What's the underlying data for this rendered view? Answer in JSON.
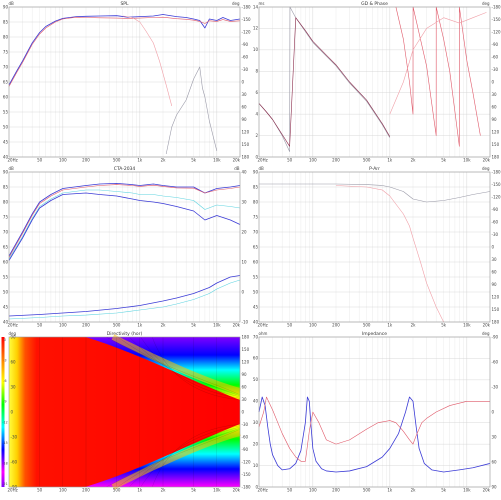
{
  "colors": {
    "blue": "#3b3bd6",
    "red": "#e05a6a",
    "cyan": "#5fd4e0",
    "grey": "#9a9aa8",
    "light_red": "#f0a0a8",
    "dark_red": "#8a2a4a"
  },
  "x_axis": {
    "ticks": [
      20,
      50,
      100,
      200,
      500,
      1000,
      2000,
      5000,
      10000,
      20000
    ],
    "tick_labels": [
      "20Hz",
      "50",
      "100",
      "200",
      "500",
      "1k",
      "2k",
      "5k",
      "10k",
      "20k"
    ]
  },
  "chart_data": [
    {
      "id": "spl",
      "type": "line",
      "title": "SPL",
      "left_unit": "dB",
      "right_unit": "deg",
      "ylim": [
        40,
        90
      ],
      "yticks": [
        40,
        45,
        50,
        55,
        60,
        65,
        70,
        75,
        80,
        85,
        90
      ],
      "right_ticks": [
        "-180",
        "-150",
        "-120",
        "-90",
        "-60",
        "-30",
        "0",
        "30",
        "60",
        "90",
        "120",
        "150",
        "180"
      ],
      "series": [
        {
          "color": "blue",
          "x": [
            20,
            25,
            30,
            40,
            50,
            60,
            80,
            100,
            150,
            200,
            300,
            500,
            700,
            1000,
            1500,
            2000,
            3000,
            4000,
            5000,
            6000,
            7000,
            8000,
            10000,
            12000,
            15000,
            20000
          ],
          "y": [
            64,
            68.5,
            72,
            78,
            81.5,
            83.5,
            85.3,
            86.2,
            86.8,
            86.9,
            87,
            87.1,
            86.6,
            86.8,
            87,
            87.5,
            86.8,
            86.5,
            86,
            85.5,
            83,
            86,
            85.5,
            86.5,
            85.5,
            86
          ]
        },
        {
          "color": "red",
          "x": [
            20,
            25,
            30,
            40,
            50,
            60,
            80,
            100,
            150,
            200,
            300,
            500,
            700,
            1000,
            1500,
            2000,
            3000,
            4000,
            5000,
            6000,
            7000,
            8000,
            10000,
            12000,
            15000,
            20000
          ],
          "y": [
            63.5,
            68,
            71.5,
            77.5,
            81,
            83,
            85,
            86,
            86.6,
            86.5,
            86.4,
            86.3,
            86.2,
            86.3,
            86.5,
            86.6,
            86.1,
            85.9,
            85.6,
            85.2,
            84.5,
            85.4,
            85.2,
            85.8,
            85.2,
            85.4
          ]
        },
        {
          "color": "light_red",
          "x": [
            600,
            800,
            1000,
            1200,
            1500,
            1800,
            2200,
            2600
          ],
          "y": [
            87,
            86.5,
            85,
            82,
            78,
            72,
            64,
            57
          ]
        },
        {
          "color": "grey",
          "x": [
            2200,
            2600,
            3000,
            4000,
            5000,
            6000,
            6500,
            7000,
            8000,
            10000
          ],
          "y": [
            41,
            50,
            54,
            59,
            66,
            70,
            63,
            60,
            52,
            42
          ]
        }
      ]
    },
    {
      "id": "gd_phase",
      "type": "line",
      "title": "GD & Phase",
      "left_unit": "ms",
      "right_unit": "deg",
      "ylim": [
        0,
        14
      ],
      "yticks": [
        0,
        2,
        4,
        6,
        8,
        10,
        12,
        14
      ],
      "right_ticks": [
        "-180",
        "-150",
        "-120",
        "-90",
        "-60",
        "-30",
        "0",
        "30",
        "60",
        "90",
        "120",
        "150",
        "180"
      ],
      "series": [
        {
          "color": "grey",
          "x": [
            20,
            25,
            30,
            40,
            50,
            50.5,
            60,
            80,
            100,
            150,
            200,
            300,
            500,
            800,
            1000
          ],
          "y": [
            5,
            4.2,
            3.5,
            2,
            0.5,
            14,
            13,
            11.7,
            10.7,
            9.4,
            8.5,
            6.9,
            5.2,
            3,
            1.8
          ]
        },
        {
          "color": "dark_red",
          "x": [
            20,
            25,
            30,
            40,
            50,
            60,
            80,
            100,
            150,
            200,
            300,
            500,
            800,
            1000
          ],
          "y": [
            5,
            4.2,
            3.5,
            2.1,
            1,
            13,
            11.8,
            10.8,
            9.5,
            8.6,
            7,
            5.3,
            3.1,
            1.9
          ]
        },
        {
          "color": "red",
          "x": [
            1200,
            1500,
            1800,
            2000,
            2005,
            2500,
            3000,
            4000,
            4005,
            5000,
            6000,
            8000,
            8005,
            10000,
            12000,
            15000
          ],
          "y": [
            14,
            11,
            7,
            4,
            14,
            11,
            8.5,
            2,
            14,
            11,
            8,
            1,
            14,
            9,
            6,
            2
          ]
        },
        {
          "color": "light_red",
          "x": [
            1000,
            1500,
            2000,
            3000,
            5000,
            8000,
            12000,
            18000
          ],
          "y": [
            4,
            7,
            10,
            12,
            13,
            12.5,
            13,
            13.5
          ]
        }
      ]
    },
    {
      "id": "cta2034",
      "type": "line",
      "title": "CTA-2034",
      "left_unit": "dB",
      "right_unit": "dB",
      "ylim": [
        40,
        90
      ],
      "yticks": [
        40,
        45,
        50,
        55,
        60,
        65,
        70,
        75,
        80,
        85,
        90
      ],
      "right_ticks": [
        "40",
        "30",
        "20",
        "10",
        "0",
        "-10"
      ],
      "series": [
        {
          "color": "blue",
          "x": [
            20,
            30,
            40,
            50,
            70,
            100,
            200,
            300,
            500,
            800,
            1000,
            1500,
            2000,
            3000,
            5000,
            7000,
            10000,
            15000,
            20000
          ],
          "y": [
            62,
            70,
            76,
            80,
            82.5,
            84.5,
            85.5,
            86,
            86.2,
            85.8,
            85.5,
            86,
            85.5,
            85,
            85,
            83,
            84.5,
            85,
            85.5
          ]
        },
        {
          "color": "red",
          "x": [
            20,
            30,
            40,
            50,
            70,
            100,
            200,
            300,
            500,
            800,
            1000,
            1500,
            2000,
            3000,
            5000,
            7000,
            10000,
            15000,
            20000
          ],
          "y": [
            61.5,
            69.5,
            75.5,
            79.5,
            82,
            84,
            85,
            85.5,
            85.8,
            85.5,
            85.2,
            85.6,
            85.2,
            84.7,
            84.6,
            83,
            84,
            84.5,
            85
          ]
        },
        {
          "color": "cyan",
          "x": [
            20,
            30,
            40,
            50,
            70,
            100,
            200,
            300,
            500,
            800,
            1000,
            1500,
            2000,
            3000,
            5000,
            7000,
            10000,
            15000,
            20000
          ],
          "y": [
            61,
            68.5,
            74.5,
            78.5,
            81,
            83,
            84,
            84,
            83.5,
            83,
            82.5,
            82.5,
            82,
            81.5,
            80.5,
            77.5,
            79,
            78.5,
            78
          ]
        },
        {
          "color": "blue",
          "x": [
            20,
            30,
            40,
            50,
            70,
            100,
            200,
            300,
            500,
            800,
            1000,
            1500,
            2000,
            3000,
            5000,
            7000,
            10000,
            15000,
            20000
          ],
          "y": [
            60.5,
            68,
            74,
            78,
            80.5,
            82.5,
            83,
            82.5,
            82,
            81,
            80.5,
            80,
            79.5,
            78.5,
            77,
            74,
            75.5,
            74,
            72.5
          ]
        },
        {
          "color": "blue",
          "x": [
            20,
            50,
            100,
            200,
            500,
            1000,
            2000,
            3000,
            5000,
            8000,
            10000,
            15000,
            20000
          ],
          "y": [
            42,
            42.5,
            43,
            43.5,
            44.5,
            45.5,
            47,
            48,
            49.5,
            51.5,
            53,
            55,
            55.5
          ]
        },
        {
          "color": "cyan",
          "x": [
            20,
            50,
            100,
            200,
            500,
            1000,
            2000,
            3000,
            5000,
            8000,
            10000,
            15000,
            20000
          ],
          "y": [
            41,
            41.5,
            42,
            42.3,
            43,
            44,
            45,
            46,
            47.5,
            49.5,
            51,
            53,
            54
          ]
        }
      ]
    },
    {
      "id": "p_arr",
      "type": "line",
      "title": "P-Arr",
      "left_unit": "dB",
      "right_unit": "deg",
      "ylim": [
        40,
        90
      ],
      "yticks": [
        40,
        45,
        50,
        55,
        60,
        65,
        70,
        75,
        80,
        85,
        90
      ],
      "right_ticks": [
        "-180",
        "-150",
        "-120",
        "-90",
        "-60",
        "-30",
        "0",
        "30",
        "60",
        "90",
        "120",
        "150",
        "180"
      ],
      "series": [
        {
          "color": "grey",
          "x": [
            20,
            50,
            100,
            200,
            500,
            800,
            1000,
            1500,
            2000,
            3000,
            5000,
            8000,
            12000,
            20000
          ],
          "y": [
            86,
            86,
            86,
            86,
            85.8,
            85.5,
            85,
            83.5,
            81,
            80,
            80.5,
            81.5,
            82.5,
            83.5
          ]
        },
        {
          "color": "light_red",
          "x": [
            200,
            500,
            800,
            1000,
            1500,
            1800,
            2000,
            2500,
            3000,
            4000,
            5000
          ],
          "y": [
            85.5,
            85,
            84,
            82,
            76,
            72,
            68,
            60,
            53,
            45,
            40
          ]
        }
      ]
    },
    {
      "id": "directivity",
      "type": "heatmap",
      "title": "Directivity (hor)",
      "left_unit": "deg",
      "yticks": [
        "-90",
        "-60",
        "-30",
        "0",
        "30",
        "60",
        "90"
      ],
      "right_ticks": [
        "180",
        "150",
        "120",
        "90",
        "60",
        "30",
        "0",
        "-30",
        "-60",
        "-90",
        "-120",
        "-150",
        "-180"
      ],
      "color_scale": [
        "#ff0000",
        "#ff8000",
        "#ffff00",
        "#00ff00",
        "#00ffff",
        "#0000ff",
        "#ff00ff",
        "#8000ff"
      ],
      "color_scale_labels": [
        "0",
        "-3",
        "-6",
        "-9",
        "-12",
        "-15",
        "-18",
        "-21"
      ]
    },
    {
      "id": "impedance",
      "type": "line",
      "title": "Impedance",
      "left_unit": "ohm",
      "right_unit": "deg",
      "ylim": [
        0,
        70
      ],
      "yticks": [
        0,
        10,
        20,
        30,
        40,
        50,
        60,
        70
      ],
      "right_ticks": [
        "-90",
        "-60",
        "-30",
        "0",
        "30",
        "60",
        "90"
      ],
      "series": [
        {
          "color": "blue",
          "x": [
            20,
            22,
            24,
            26,
            28,
            30,
            35,
            40,
            50,
            60,
            70,
            80,
            85,
            90,
            95,
            100,
            110,
            130,
            150,
            200,
            300,
            500,
            800,
            1000,
            1300,
            1600,
            1800,
            2000,
            2200,
            2400,
            2800,
            3500,
            5000,
            8000,
            12000,
            20000
          ],
          "y": [
            35,
            42,
            38,
            28,
            20,
            15,
            10,
            8,
            8.5,
            11,
            17,
            30,
            42,
            40,
            28,
            18,
            12,
            8.5,
            7.5,
            7,
            7.5,
            9.5,
            14,
            18,
            25,
            35,
            42,
            40,
            28,
            18,
            11,
            8,
            7,
            8,
            9,
            11
          ]
        },
        {
          "color": "red",
          "x": [
            20,
            23,
            25,
            30,
            40,
            50,
            60,
            70,
            80,
            90,
            100,
            120,
            150,
            200,
            300,
            500,
            700,
            1000,
            1200,
            1500,
            1800,
            2000,
            2200,
            2600,
            3000,
            4000,
            6000,
            10000,
            20000
          ],
          "y": [
            28,
            35,
            42,
            36,
            25,
            18,
            14,
            12,
            12,
            26,
            35,
            30,
            22,
            20,
            22,
            27,
            30,
            31,
            30,
            26,
            22,
            20,
            24,
            30,
            32,
            35,
            38,
            40,
            40
          ]
        }
      ]
    }
  ]
}
